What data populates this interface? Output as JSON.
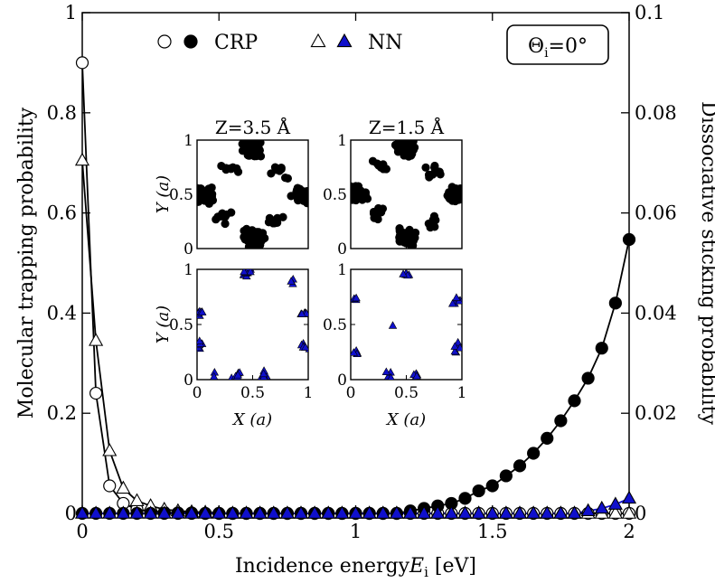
{
  "chart_data": [
    {
      "type": "line",
      "xlabel": "Incidence energy E_i [eV]",
      "ylabel": "Molecular trapping probability",
      "y2label": "Dissociative sticking probability",
      "annotation": "Θi = 0°",
      "xlim": [
        0,
        2
      ],
      "ylim": [
        0,
        1
      ],
      "y2lim": [
        0,
        0.1
      ],
      "x_ticks": [
        "0",
        "0.5",
        "1",
        "1.5",
        "2"
      ],
      "y_ticks": [
        "0",
        "0.2",
        "0.4",
        "0.6",
        "0.8",
        "1"
      ],
      "y2_ticks": [
        "0",
        "0.02",
        "0.04",
        "0.06",
        "0.08",
        "0.1"
      ],
      "grid": false,
      "legend_position": "top-center",
      "legend": [
        {
          "label": "CRP",
          "markers": [
            "open-circle",
            "filled-circle"
          ],
          "color": "#000000"
        },
        {
          "label": "NN",
          "markers": [
            "open-triangle",
            "filled-triangle"
          ],
          "color": "#1010cc"
        }
      ],
      "x": [
        0.0,
        0.05,
        0.1,
        0.15,
        0.2,
        0.25,
        0.3,
        0.35,
        0.4,
        0.45,
        0.5,
        0.55,
        0.6,
        0.65,
        0.7,
        0.75,
        0.8,
        0.85,
        0.9,
        0.95,
        1.0,
        1.05,
        1.1,
        1.15,
        1.2,
        1.25,
        1.3,
        1.35,
        1.4,
        1.45,
        1.5,
        1.55,
        1.6,
        1.65,
        1.7,
        1.75,
        1.8,
        1.85,
        1.9,
        1.95,
        2.0
      ],
      "series": [
        {
          "name": "CRP",
          "quantity": "trapping",
          "axis": "left",
          "marker": "open-circle",
          "color": "#000000",
          "values": [
            0.9,
            0.24,
            0.055,
            0.02,
            0.008,
            0.004,
            0.002,
            0.001,
            0.001,
            0,
            0,
            0,
            0,
            0,
            0,
            0,
            0,
            0,
            0,
            0,
            0,
            0,
            0,
            0,
            0,
            0,
            0,
            0,
            0,
            0,
            0,
            0,
            0,
            0,
            0,
            0,
            0,
            0,
            0,
            0,
            0
          ]
        },
        {
          "name": "NN",
          "quantity": "trapping",
          "axis": "left",
          "marker": "open-triangle",
          "color": "#000000",
          "values": [
            0.705,
            0.345,
            0.125,
            0.05,
            0.025,
            0.015,
            0.008,
            0.005,
            0.003,
            0.002,
            0.001,
            0,
            0,
            0,
            0,
            0,
            0,
            0,
            0,
            0,
            0,
            0,
            0,
            0,
            0,
            0,
            0,
            0,
            0,
            0,
            0,
            0,
            0,
            0,
            0,
            0,
            0,
            0,
            0,
            0,
            0
          ]
        },
        {
          "name": "CRP",
          "quantity": "sticking",
          "axis": "right",
          "marker": "filled-circle",
          "color": "#000000",
          "values": [
            0,
            0,
            0,
            0,
            0,
            0,
            0,
            0,
            0,
            0,
            0,
            0,
            0,
            0,
            0,
            0,
            0,
            0,
            0,
            0,
            0,
            0,
            0,
            0,
            0.0005,
            0.001,
            0.0015,
            0.002,
            0.003,
            0.0045,
            0.0055,
            0.0075,
            0.0095,
            0.012,
            0.015,
            0.0185,
            0.0225,
            0.027,
            0.033,
            0.042,
            0.0547
          ]
        },
        {
          "name": "NN",
          "quantity": "sticking",
          "axis": "right",
          "marker": "filled-triangle",
          "color": "#1010cc",
          "values": [
            0,
            0,
            0,
            0,
            0,
            0,
            0,
            0,
            0,
            0,
            0,
            0,
            0,
            0,
            0,
            0,
            0,
            0,
            0,
            0,
            0,
            0,
            0,
            0,
            0,
            0,
            0,
            0,
            0,
            0,
            0,
            0,
            0,
            0,
            0,
            0,
            0,
            0.0005,
            0.001,
            0.0018,
            0.003
          ]
        }
      ]
    },
    {
      "type": "scatter",
      "panels": [
        {
          "title": "Z=3.5 Å",
          "ylabel": "Y (a)",
          "xlabel": "",
          "series": "CRP",
          "marker": "filled-circle",
          "color": "#000000"
        },
        {
          "title": "Z=1.5 Å",
          "ylabel": "",
          "xlabel": "",
          "series": "CRP",
          "marker": "filled-circle",
          "color": "#000000"
        },
        {
          "title": "",
          "ylabel": "Y (a)",
          "xlabel": "X (a)",
          "series": "NN",
          "marker": "filled-triangle",
          "color": "#1010cc"
        },
        {
          "title": "",
          "ylabel": "",
          "xlabel": "X (a)",
          "series": "NN",
          "marker": "filled-triangle",
          "color": "#1010cc"
        }
      ],
      "xlim": [
        0,
        1
      ],
      "ylim": [
        0,
        1
      ],
      "ticks": [
        "0",
        "0.5",
        "1"
      ]
    }
  ]
}
